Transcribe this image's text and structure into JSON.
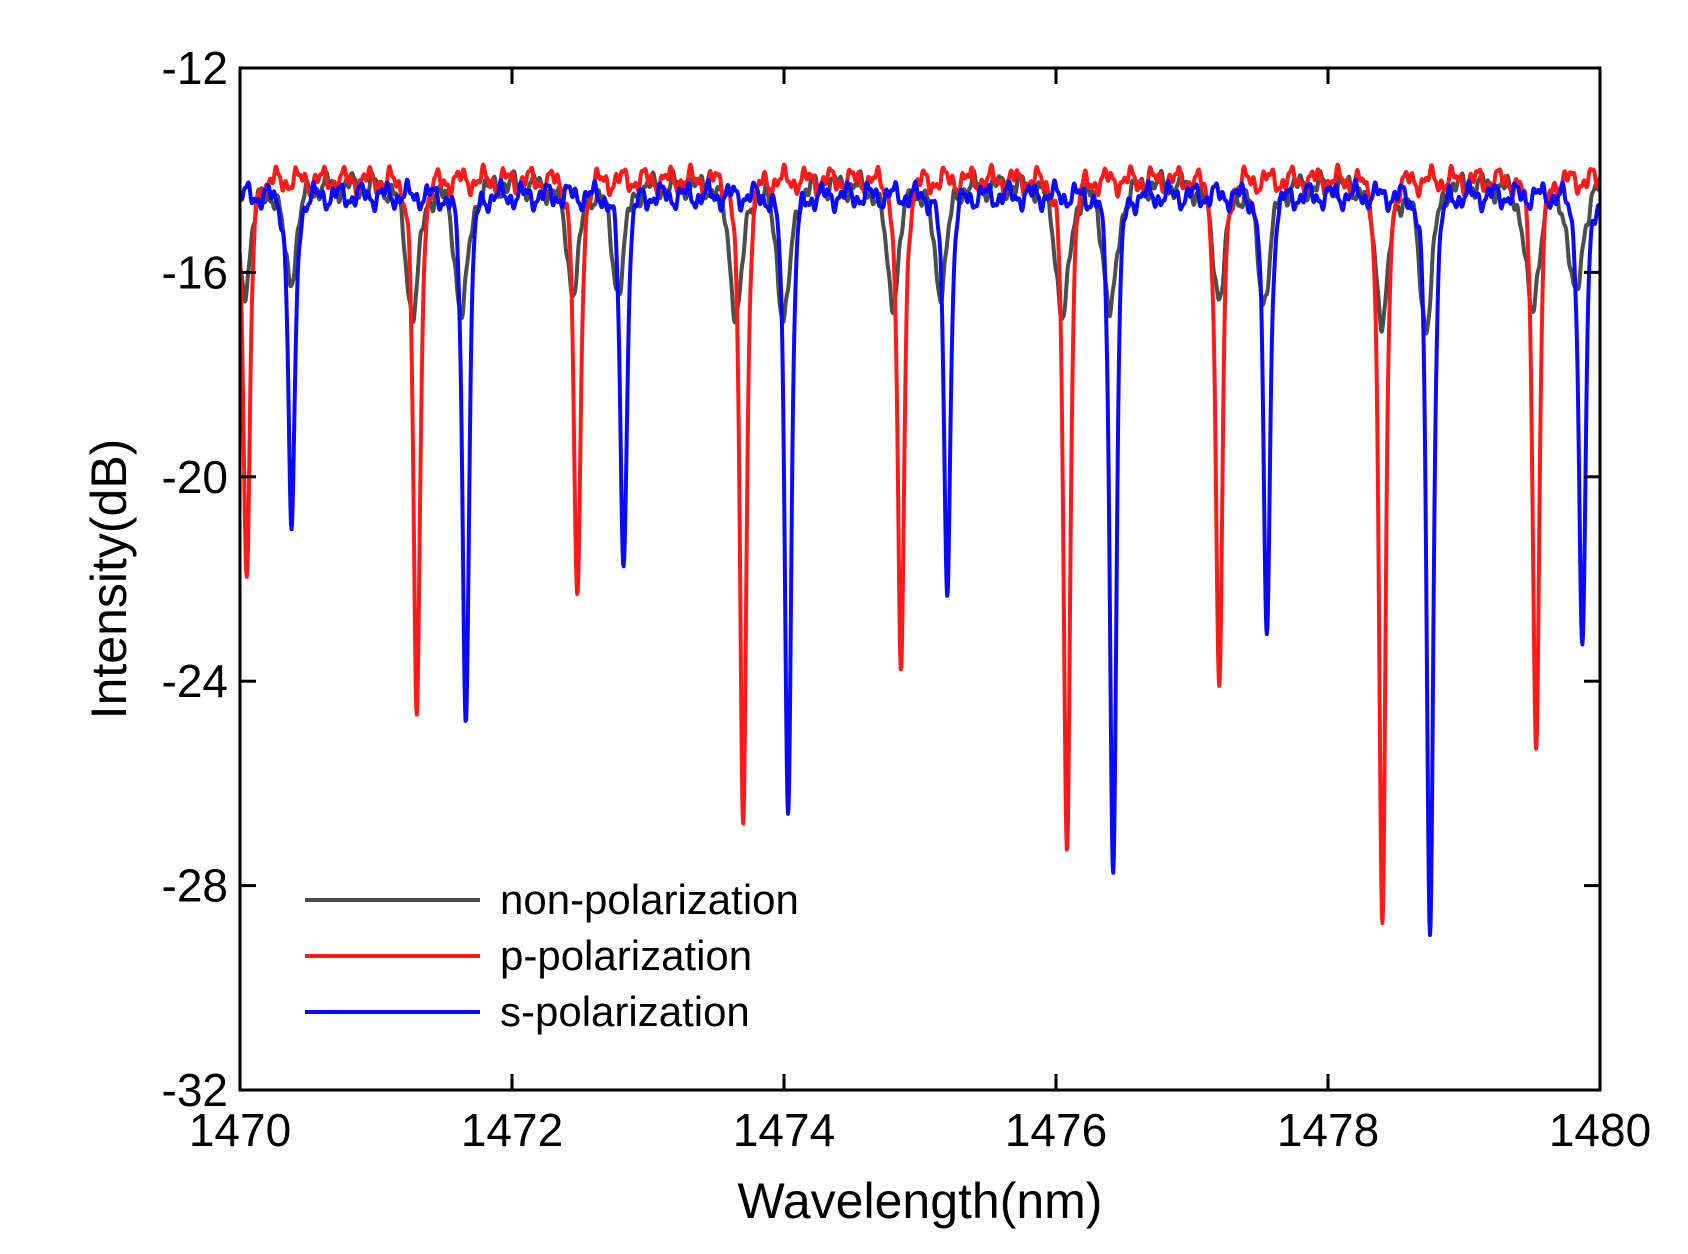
{
  "chart_data": {
    "type": "line",
    "title": "",
    "xlabel": "Wavelength(nm)",
    "ylabel": "Intensity(dB)",
    "xlim": [
      1470,
      1480
    ],
    "ylim": [
      -32,
      -12
    ],
    "xticks": [
      1470,
      1472,
      1474,
      1476,
      1478,
      1480
    ],
    "xtick_labels": [
      "1470",
      "1472",
      "1474",
      "1476",
      "1478",
      "1480"
    ],
    "yticks": [
      -32,
      -28,
      -24,
      -20,
      -16,
      -12
    ],
    "ytick_labels": [
      "-32",
      "-28",
      "-24",
      "-20",
      "-16",
      "-12"
    ],
    "grid": false,
    "legend_position": "bottom-left",
    "series": [
      {
        "name": "non-polarization",
        "color": "#4d4d4d",
        "baseline": -14.3,
        "dips": [
          {
            "x": 1470.03,
            "y": -16.3,
            "w": 0.07
          },
          {
            "x": 1470.37,
            "y": -16.1,
            "w": 0.07
          },
          {
            "x": 1471.27,
            "y": -16.8,
            "w": 0.07
          },
          {
            "x": 1471.63,
            "y": -16.8,
            "w": 0.07
          },
          {
            "x": 1472.45,
            "y": -16.3,
            "w": 0.07
          },
          {
            "x": 1472.78,
            "y": -16.3,
            "w": 0.07
          },
          {
            "x": 1473.65,
            "y": -16.8,
            "w": 0.07
          },
          {
            "x": 1474.0,
            "y": -16.9,
            "w": 0.07
          },
          {
            "x": 1474.8,
            "y": -16.5,
            "w": 0.07
          },
          {
            "x": 1475.15,
            "y": -16.3,
            "w": 0.07
          },
          {
            "x": 1476.05,
            "y": -16.9,
            "w": 0.07
          },
          {
            "x": 1476.4,
            "y": -16.8,
            "w": 0.07
          },
          {
            "x": 1477.2,
            "y": -16.4,
            "w": 0.07
          },
          {
            "x": 1477.53,
            "y": -16.5,
            "w": 0.07
          },
          {
            "x": 1478.4,
            "y": -16.9,
            "w": 0.07
          },
          {
            "x": 1478.72,
            "y": -17.0,
            "w": 0.07
          },
          {
            "x": 1479.5,
            "y": -16.8,
            "w": 0.07
          },
          {
            "x": 1479.82,
            "y": -16.5,
            "w": 0.07
          }
        ]
      },
      {
        "name": "p-polarization",
        "color": "#ff1a1a",
        "baseline": -14.2,
        "dips": [
          {
            "x": 1470.05,
            "y": -22.0,
            "w": 0.035
          },
          {
            "x": 1471.3,
            "y": -24.8,
            "w": 0.035
          },
          {
            "x": 1472.48,
            "y": -22.6,
            "w": 0.035
          },
          {
            "x": 1473.7,
            "y": -26.7,
            "w": 0.035
          },
          {
            "x": 1474.86,
            "y": -23.8,
            "w": 0.035
          },
          {
            "x": 1476.08,
            "y": -27.4,
            "w": 0.035
          },
          {
            "x": 1477.2,
            "y": -24.2,
            "w": 0.035
          },
          {
            "x": 1478.4,
            "y": -28.9,
            "w": 0.035
          },
          {
            "x": 1479.53,
            "y": -25.3,
            "w": 0.035
          }
        ]
      },
      {
        "name": "s-polarization",
        "color": "#0a0aff",
        "baseline": -14.5,
        "dips": [
          {
            "x": 1470.38,
            "y": -21.1,
            "w": 0.035
          },
          {
            "x": 1471.66,
            "y": -24.7,
            "w": 0.035
          },
          {
            "x": 1472.82,
            "y": -21.8,
            "w": 0.035
          },
          {
            "x": 1474.03,
            "y": -26.4,
            "w": 0.035
          },
          {
            "x": 1475.2,
            "y": -22.1,
            "w": 0.035
          },
          {
            "x": 1476.42,
            "y": -27.7,
            "w": 0.035
          },
          {
            "x": 1477.55,
            "y": -23.1,
            "w": 0.035
          },
          {
            "x": 1478.75,
            "y": -29.1,
            "w": 0.035
          },
          {
            "x": 1479.87,
            "y": -23.5,
            "w": 0.035
          }
        ]
      }
    ]
  }
}
